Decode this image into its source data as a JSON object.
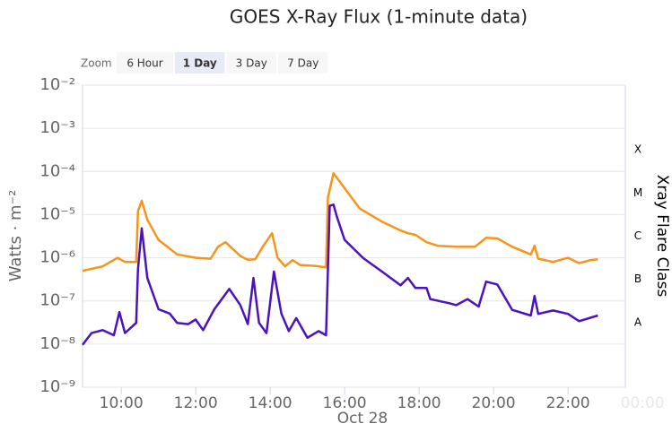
{
  "chart_data": {
    "type": "line",
    "title": "GOES X-Ray Flux (1-minute data)",
    "zoom": {
      "label": "Zoom",
      "buttons": [
        "6 Hour",
        "1 Day",
        "3 Day",
        "7 Day"
      ],
      "selected": 1
    },
    "ylabel": "Watts · m⁻²",
    "y2label": "Xray Flare Class",
    "xlabel": "Oct 28",
    "log_y": true,
    "grid": true,
    "xlim": [
      8.96,
      23.54
    ],
    "ylim": [
      1e-09,
      0.01
    ],
    "xticks": [
      {
        "value": 10,
        "label": "10:00"
      },
      {
        "value": 12,
        "label": "12:00"
      },
      {
        "value": 14,
        "label": "14:00"
      },
      {
        "value": 16,
        "label": "16:00"
      },
      {
        "value": 18,
        "label": "18:00"
      },
      {
        "value": 20,
        "label": "20:00"
      },
      {
        "value": 22,
        "label": "22:00"
      },
      {
        "value": 24,
        "label": "00:00"
      }
    ],
    "yticks": [
      {
        "value": 1e-09,
        "label": "10⁻⁹"
      },
      {
        "value": 1e-08,
        "label": "10⁻⁸"
      },
      {
        "value": 1e-07,
        "label": "10⁻⁷"
      },
      {
        "value": 1e-06,
        "label": "10⁻⁶"
      },
      {
        "value": 1e-05,
        "label": "10⁻⁵"
      },
      {
        "value": 0.0001,
        "label": "10⁻⁴"
      },
      {
        "value": 0.001,
        "label": "10⁻³"
      },
      {
        "value": 0.01,
        "label": "10⁻²"
      }
    ],
    "y2ticks": [
      {
        "value": 1e-08,
        "label": "A"
      },
      {
        "value": 1e-07,
        "label": "B"
      },
      {
        "value": 1e-06,
        "label": "C"
      },
      {
        "value": 1e-05,
        "label": "M"
      },
      {
        "value": 0.0001,
        "label": "X"
      }
    ],
    "series": [
      {
        "color": "#f7941d",
        "x": [
          8.96,
          9.5,
          9.9,
          10.1,
          10.4,
          10.45,
          10.55,
          10.7,
          11.0,
          11.5,
          12.0,
          12.4,
          12.6,
          12.8,
          13.2,
          13.4,
          13.6,
          13.8,
          14.05,
          14.2,
          14.4,
          14.6,
          14.8,
          15.2,
          15.5,
          15.55,
          15.7,
          16.0,
          16.4,
          17.0,
          17.5,
          17.7,
          17.9,
          18.2,
          18.5,
          19.0,
          19.5,
          19.8,
          20.1,
          20.5,
          21.0,
          21.1,
          21.2,
          21.6,
          22.0,
          22.3,
          22.6,
          22.8
        ],
        "values": [
          5e-07,
          6.3e-07,
          1e-06,
          8e-07,
          8e-07,
          1.2e-05,
          2.1e-05,
          7.6e-06,
          2.6e-06,
          1.2e-06,
          1e-06,
          9.5e-07,
          1.8e-06,
          2.3e-06,
          1.1e-06,
          9e-07,
          9.2e-07,
          1.8e-06,
          3.7e-06,
          1e-06,
          6.3e-07,
          8.8e-07,
          6.8e-07,
          6.5e-07,
          6e-07,
          2.5e-05,
          9.1e-05,
          4.1e-05,
          1.4e-05,
          6.9e-06,
          4.3e-06,
          3.7e-06,
          3.4e-06,
          2.3e-06,
          1.9e-06,
          1.8e-06,
          1.8e-06,
          2.9e-06,
          2.8e-06,
          1.8e-06,
          1.2e-06,
          1.9e-06,
          9.5e-07,
          8e-07,
          1e-06,
          7.5e-07,
          8.8e-07,
          9.2e-07
        ]
      },
      {
        "color": "#4b12c0",
        "x": [
          8.96,
          9.2,
          9.5,
          9.8,
          9.95,
          10.1,
          10.4,
          10.45,
          10.55,
          10.7,
          11.0,
          11.3,
          11.5,
          11.8,
          12.0,
          12.2,
          12.5,
          12.7,
          12.9,
          13.2,
          13.4,
          13.55,
          13.7,
          13.9,
          14.1,
          14.3,
          14.5,
          14.7,
          15.0,
          15.3,
          15.5,
          15.6,
          15.7,
          15.8,
          16.0,
          16.5,
          17.0,
          17.5,
          17.7,
          17.9,
          18.2,
          18.3,
          18.8,
          19.0,
          19.3,
          19.6,
          19.8,
          20.1,
          20.5,
          21.0,
          21.1,
          21.2,
          21.6,
          22.0,
          22.3,
          22.8
        ],
        "values": [
          9.6e-09,
          1.8e-08,
          2.1e-08,
          1.6e-08,
          5.5e-08,
          1.8e-08,
          3.1e-08,
          5.5e-07,
          4.8e-06,
          3.4e-07,
          6.4e-08,
          5.1e-08,
          3.1e-08,
          2.9e-08,
          3.7e-08,
          2.1e-08,
          6.4e-08,
          1.1e-07,
          1.9e-07,
          8e-08,
          2.9e-08,
          3.4e-07,
          3.1e-08,
          1.8e-08,
          4.8e-07,
          5.1e-08,
          2e-08,
          4e-08,
          1.4e-08,
          2e-08,
          1.6e-08,
          1.6e-05,
          1.7e-05,
          8.5e-06,
          2.6e-06,
          9.8e-07,
          4.8e-07,
          2.3e-07,
          3.4e-07,
          2e-07,
          2e-07,
          1.1e-07,
          8.9e-08,
          8e-08,
          1.1e-07,
          7.4e-08,
          2.8e-07,
          2.4e-07,
          6.2e-08,
          4.6e-08,
          1.3e-07,
          5e-08,
          6e-08,
          5e-08,
          3.4e-08,
          4.6e-08
        ]
      }
    ]
  }
}
